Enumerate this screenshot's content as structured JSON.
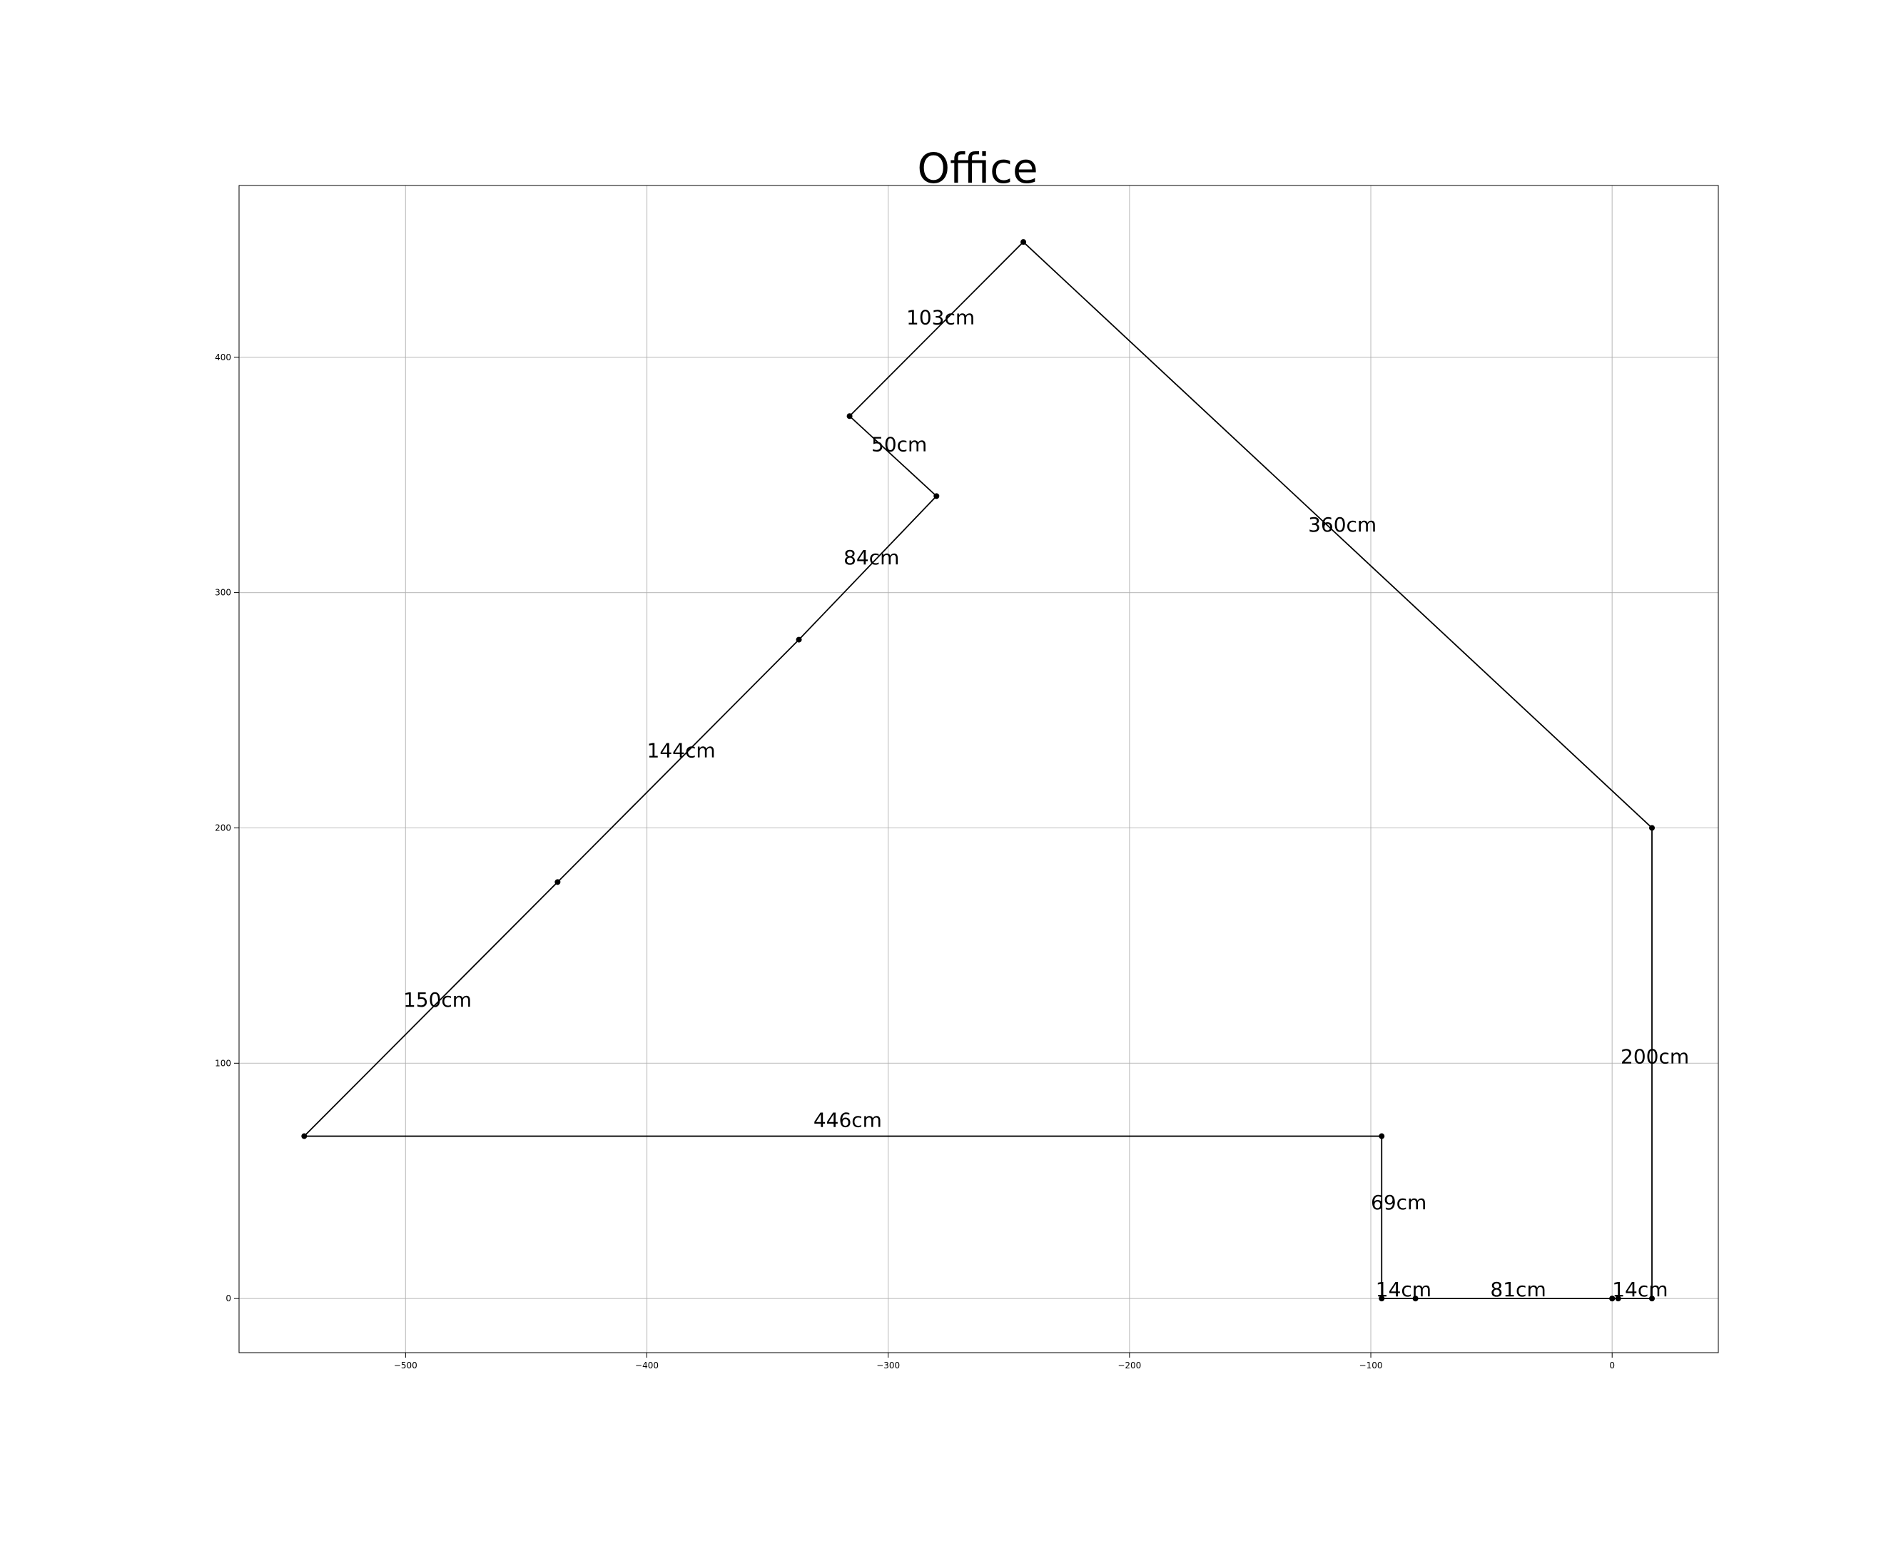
{
  "chart_data": {
    "type": "line",
    "title": "Office",
    "xlabel": "",
    "ylabel": "",
    "xlim": [
      -569,
      44
    ],
    "ylim": [
      -23,
      473
    ],
    "grid": true,
    "x_ticks": [
      {
        "value": -500,
        "label": "−500"
      },
      {
        "value": -400,
        "label": "−400"
      },
      {
        "value": -300,
        "label": "−300"
      },
      {
        "value": -200,
        "label": "−200"
      },
      {
        "value": -100,
        "label": "−100"
      },
      {
        "value": 0,
        "label": "0"
      }
    ],
    "y_ticks": [
      {
        "value": 0,
        "label": "0"
      },
      {
        "value": 100,
        "label": "100"
      },
      {
        "value": 200,
        "label": "200"
      },
      {
        "value": 300,
        "label": "300"
      },
      {
        "value": 400,
        "label": "400"
      }
    ],
    "vertices": [
      {
        "x": 0,
        "y": 0
      },
      {
        "x": 2.5,
        "y": 0
      },
      {
        "x": 16.5,
        "y": 0
      },
      {
        "x": 16.5,
        "y": 200
      },
      {
        "x": -244,
        "y": 449
      },
      {
        "x": -316,
        "y": 375
      },
      {
        "x": -280,
        "y": 341
      },
      {
        "x": -337,
        "y": 280
      },
      {
        "x": -437,
        "y": 177
      },
      {
        "x": -542,
        "y": 69
      },
      {
        "x": -95.5,
        "y": 69
      },
      {
        "x": -95.5,
        "y": 0
      },
      {
        "x": -81.5,
        "y": 0
      },
      {
        "x": 0,
        "y": 0
      }
    ],
    "segment_labels": [
      {
        "text": "14cm",
        "x": 0,
        "y": 1
      },
      {
        "text": "200cm",
        "x": 3.5,
        "y": 100
      },
      {
        "text": "360cm",
        "x": -126,
        "y": 326
      },
      {
        "text": "103cm",
        "x": -292.5,
        "y": 414
      },
      {
        "text": "50cm",
        "x": -307,
        "y": 360
      },
      {
        "text": "84cm",
        "x": -318.5,
        "y": 312
      },
      {
        "text": "144cm",
        "x": -400,
        "y": 230
      },
      {
        "text": "150cm",
        "x": -501,
        "y": 124
      },
      {
        "text": "446cm",
        "x": -331,
        "y": 73
      },
      {
        "text": "69cm",
        "x": -100,
        "y": 38
      },
      {
        "text": "14cm",
        "x": -98,
        "y": 1
      },
      {
        "text": "81cm",
        "x": -50.5,
        "y": 1
      }
    ]
  }
}
